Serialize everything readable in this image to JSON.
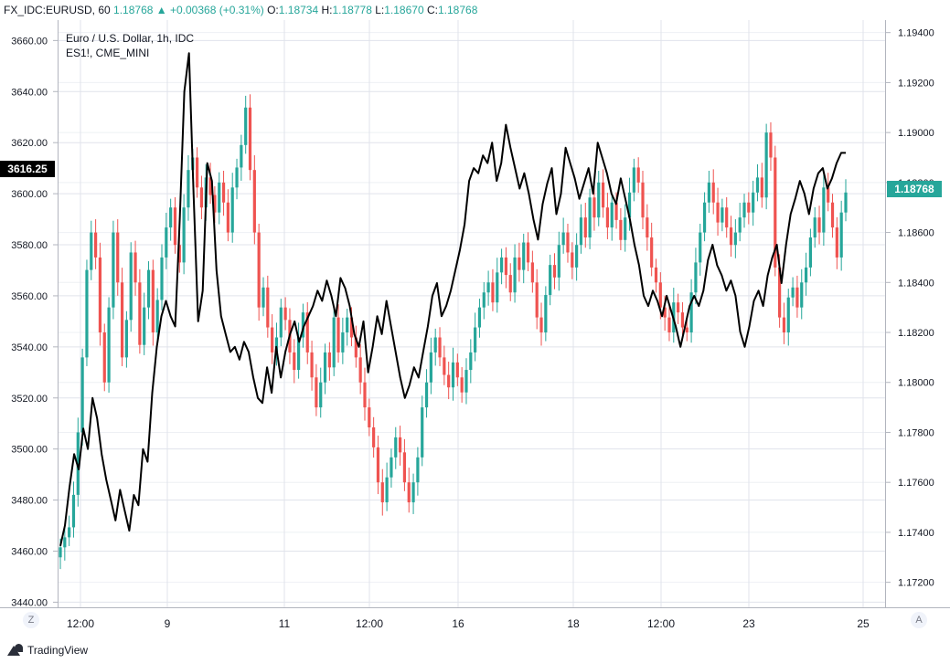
{
  "header": {
    "symbol": "FX_IDC:EURUSD, 60",
    "last": "1.18768",
    "change": "▲ +0.00368 (+0.31%)",
    "o_label": "O:",
    "o_value": "1.18734",
    "h_label": "H:",
    "h_value": "1.18778",
    "l_label": "L:",
    "l_value": "1.18670",
    "c_label": "C:",
    "c_value": "1.18768"
  },
  "legend": {
    "series1": "Euro / U.S. Dollar, 1h, IDC",
    "series2": "ES1!, CME_MINI"
  },
  "badges": {
    "left_value": "3616.25",
    "right_value": "1.18768"
  },
  "footer": {
    "brand": "TradingView",
    "left_corner": "Z",
    "right_corner": "A"
  },
  "colors": {
    "up": "#26a69a",
    "down": "#ef5350",
    "line": "#000000",
    "grid": "#e0e3eb"
  },
  "chart_data": {
    "type": "line",
    "x_tick_labels": [
      "12:00",
      "9",
      "11",
      "12:00",
      "16",
      "18",
      "12:00",
      "23",
      "25"
    ],
    "left_axis": {
      "label": "",
      "ticks": [
        "3660.00",
        "3640.00",
        "3620.00",
        "3600.00",
        "3580.00",
        "3560.00",
        "3540.00",
        "3520.00",
        "3500.00",
        "3480.00",
        "3460.00",
        "3440.00"
      ],
      "range": [
        3438,
        3668
      ]
    },
    "right_axis": {
      "label": "",
      "ticks": [
        "1.19400",
        "1.19200",
        "1.19000",
        "1.18800",
        "1.18600",
        "1.18400",
        "1.18200",
        "1.18000",
        "1.17800",
        "1.17600",
        "1.17400",
        "1.17200"
      ],
      "range": [
        1.171,
        1.1945
      ]
    },
    "series": [
      {
        "name": "Euro / U.S. Dollar, 1h, IDC",
        "style": "candles",
        "axis": "right",
        "values": [
          1.1734,
          1.1738,
          1.1742,
          1.1755,
          1.178,
          1.181,
          1.1845,
          1.186,
          1.185,
          1.182,
          1.18,
          1.183,
          1.186,
          1.184,
          1.181,
          1.1825,
          1.1852,
          1.184,
          1.1815,
          1.183,
          1.1845,
          1.182,
          1.1833,
          1.185,
          1.1862,
          1.187,
          1.1855,
          1.1848,
          1.187,
          1.1885,
          1.189,
          1.1878,
          1.187,
          1.1882,
          1.1875,
          1.1868,
          1.188,
          1.1872,
          1.186,
          1.1878,
          1.1886,
          1.1895,
          1.191,
          1.1885,
          1.186,
          1.183,
          1.1838,
          1.1822,
          1.1812,
          1.1818,
          1.183,
          1.1825,
          1.1812,
          1.1805,
          1.1818,
          1.1828,
          1.1812,
          1.1802,
          1.179,
          1.18,
          1.1812,
          1.1806,
          1.1826,
          1.1812,
          1.182,
          1.1826,
          1.1818,
          1.181,
          1.18,
          1.179,
          1.1782,
          1.1774,
          1.176,
          1.1752,
          1.1762,
          1.177,
          1.1778,
          1.1772,
          1.176,
          1.1752,
          1.176,
          1.177,
          1.179,
          1.18,
          1.1812,
          1.1818,
          1.181,
          1.1803,
          1.1798,
          1.1808,
          1.1802,
          1.1796,
          1.1805,
          1.1812,
          1.1822,
          1.183,
          1.1836,
          1.184,
          1.1832,
          1.1844,
          1.185,
          1.1843,
          1.1836,
          1.185,
          1.1845,
          1.1856,
          1.1848,
          1.184,
          1.1826,
          1.182,
          1.1835,
          1.1847,
          1.1842,
          1.1855,
          1.186,
          1.1852,
          1.1846,
          1.1855,
          1.1866,
          1.1858,
          1.1874,
          1.1866,
          1.188,
          1.187,
          1.1862,
          1.1872,
          1.1865,
          1.1857,
          1.1866,
          1.1876,
          1.1886,
          1.188,
          1.1866,
          1.1858,
          1.1846,
          1.184,
          1.183,
          1.1826,
          1.182,
          1.1832,
          1.1828,
          1.1822,
          1.182,
          1.1836,
          1.1848,
          1.186,
          1.1872,
          1.188,
          1.1872,
          1.1864,
          1.187,
          1.1862,
          1.1855,
          1.186,
          1.1866,
          1.1872,
          1.1868,
          1.1876,
          1.1882,
          1.1874,
          1.19,
          1.189,
          1.1846,
          1.1826,
          1.182,
          1.1834,
          1.1838,
          1.183,
          1.184,
          1.1846,
          1.1858,
          1.1866,
          1.186,
          1.1878,
          1.1872,
          1.1862,
          1.185,
          1.1868,
          1.1876
        ]
      },
      {
        "name": "ES1!, CME_MINI",
        "style": "line",
        "axis": "left",
        "values": [
          3462,
          3470,
          3485,
          3498,
          3492,
          3508,
          3500,
          3520,
          3512,
          3498,
          3488,
          3480,
          3472,
          3484,
          3476,
          3468,
          3482,
          3478,
          3500,
          3495,
          3522,
          3540,
          3552,
          3558,
          3552,
          3548,
          3590,
          3640,
          3655,
          3600,
          3550,
          3562,
          3612,
          3605,
          3570,
          3552,
          3545,
          3538,
          3540,
          3535,
          3542,
          3538,
          3528,
          3520,
          3518,
          3532,
          3522,
          3540,
          3528,
          3538,
          3545,
          3550,
          3542,
          3548,
          3552,
          3556,
          3562,
          3558,
          3566,
          3560,
          3552,
          3567,
          3563,
          3556,
          3545,
          3540,
          3550,
          3530,
          3540,
          3552,
          3545,
          3558,
          3548,
          3538,
          3528,
          3520,
          3525,
          3532,
          3528,
          3538,
          3548,
          3560,
          3565,
          3552,
          3556,
          3562,
          3570,
          3578,
          3588,
          3605,
          3610,
          3608,
          3615,
          3612,
          3620,
          3605,
          3612,
          3627,
          3618,
          3610,
          3602,
          3608,
          3600,
          3590,
          3582,
          3596,
          3604,
          3610,
          3592,
          3600,
          3618,
          3612,
          3606,
          3598,
          3604,
          3610,
          3600,
          3620,
          3614,
          3608,
          3600,
          3596,
          3606,
          3598,
          3590,
          3580,
          3572,
          3560,
          3556,
          3562,
          3558,
          3552,
          3560,
          3554,
          3548,
          3540,
          3548,
          3556,
          3560,
          3556,
          3562,
          3574,
          3580,
          3572,
          3568,
          3562,
          3566,
          3560,
          3546,
          3540,
          3548,
          3558,
          3562,
          3556,
          3568,
          3575,
          3580,
          3565,
          3580,
          3592,
          3598,
          3605,
          3600,
          3592,
          3602,
          3608,
          3610,
          3602,
          3606,
          3612,
          3616,
          3616
        ]
      }
    ],
    "grid": true
  }
}
